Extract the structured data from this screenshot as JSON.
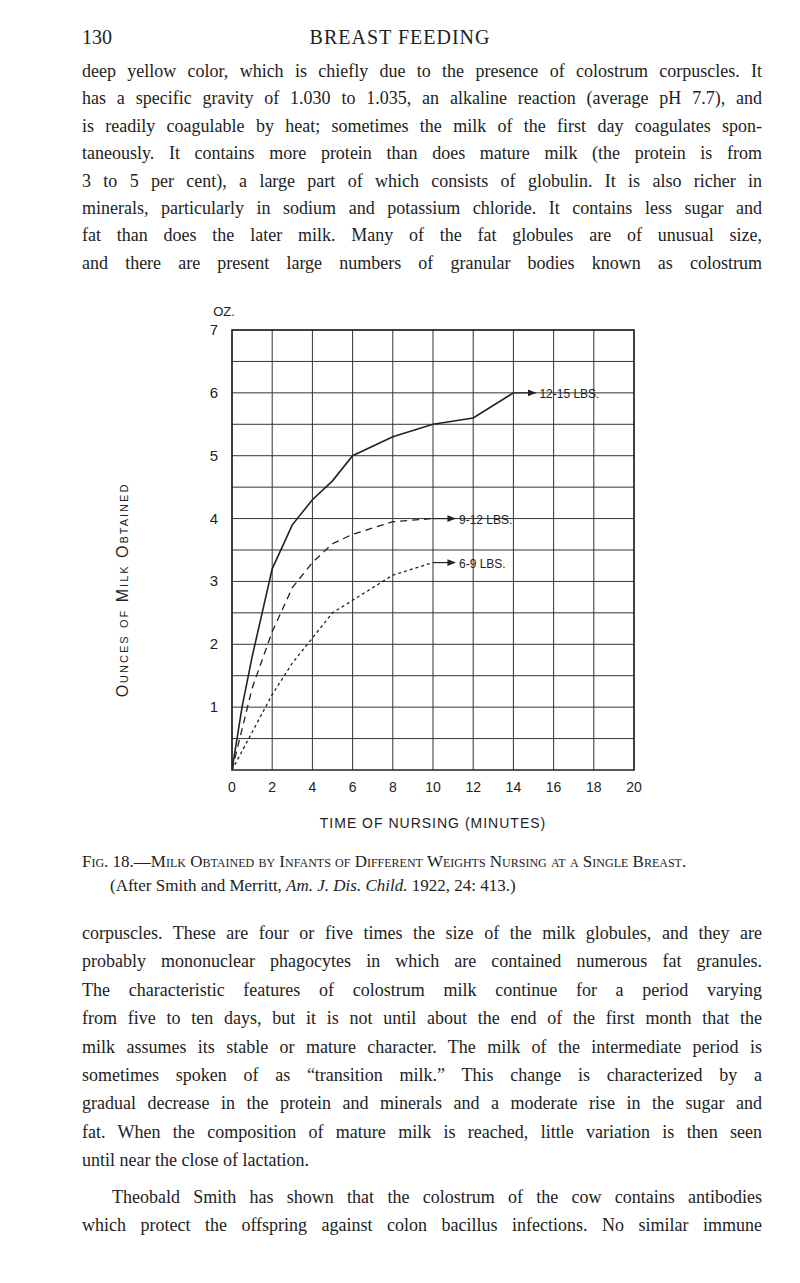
{
  "page_number": "130",
  "running_head": "BREAST FEEDING",
  "text_before": [
    {
      "lines": [
        "deep yellow color, which is chiefly due to the presence of colostrum corpuscles. It",
        "has a specific gravity of 1.030 to 1.035, an alkaline reaction (average pH 7.7), and",
        "is readily coagulable by heat; sometimes the milk of the first day coagulates spon-",
        "taneously. It contains more protein than does mature milk (the protein is from",
        "3 to 5 per cent), a large part of which consists of globulin. It is also richer in",
        "minerals, particularly in sodium and potassium chloride. It contains less sugar and",
        "fat than does the later milk. Many of the fat globules are of unusual size,",
        "and there are present large numbers of granular bodies known as colostrum"
      ]
    }
  ],
  "chart_data": {
    "type": "line",
    "x_label": "TIME OF NURSING (MINUTES)",
    "y_label": "Ounces of Milk Obtained",
    "annotations": [
      "OZ."
    ],
    "xlim": [
      0,
      20
    ],
    "xticks": [
      0,
      2,
      4,
      6,
      8,
      10,
      12,
      14,
      16,
      18,
      20
    ],
    "ylim": [
      0,
      7
    ],
    "yticks": [
      1,
      2,
      3,
      4,
      5,
      6,
      7
    ],
    "grid": true,
    "series": [
      {
        "name": "12-15 LBS.",
        "color": "#222222",
        "line_style": "solid",
        "x": [
          0,
          0.5,
          1,
          1.5,
          2,
          3,
          4,
          5,
          6,
          8,
          10,
          12,
          14
        ],
        "values": [
          0,
          1,
          1.8,
          2.5,
          3.2,
          3.9,
          4.3,
          4.6,
          5.0,
          5.3,
          5.5,
          5.6,
          6.0
        ]
      },
      {
        "name": "9-12 LBS.",
        "color": "#222222",
        "line_style": "dashed",
        "x": [
          0,
          1,
          2,
          3,
          4,
          5,
          6,
          7,
          8,
          10
        ],
        "values": [
          0,
          1.3,
          2.2,
          2.9,
          3.3,
          3.6,
          3.75,
          3.85,
          3.95,
          4.0
        ]
      },
      {
        "name": "6-9 LBS.",
        "color": "#222222",
        "line_style": "dotted",
        "x": [
          0,
          2,
          3,
          4,
          5,
          6,
          7,
          8,
          9,
          10
        ],
        "values": [
          0,
          1.2,
          1.7,
          2.1,
          2.5,
          2.7,
          2.9,
          3.1,
          3.2,
          3.3
        ]
      }
    ]
  },
  "caption": {
    "title": "Fig. 18.—Milk Obtained by Infants of Different Weights Nursing at a Single Breast.",
    "source_before": "(After Smith and Merritt, ",
    "source_journal": "Am. J. Dis. Child.",
    "source_after": " 1922, 24: 413.)"
  },
  "text_after": [
    {
      "lines": [
        "corpuscles. These are four or five times the size of the milk globules, and they are",
        "probably mononuclear phagocytes in which are contained numerous fat granules.",
        "The characteristic features of colostrum milk continue for a period varying",
        "from five to ten days, but it is not until about the end of the first month that the",
        "milk assumes its stable or mature character. The milk of the intermediate period is",
        "sometimes spoken of as “transition milk.” This change is characterized by a",
        "gradual decrease in the protein and minerals and a moderate rise in the sugar and",
        "fat. When the composition of mature milk is reached, little variation is then seen",
        "until near the close of lactation."
      ]
    },
    {
      "lines": [
        "Theobald Smith has shown that the colostrum of the cow contains antibodies",
        "which protect the offspring against colon bacillus infections. No similar immune"
      ]
    }
  ]
}
